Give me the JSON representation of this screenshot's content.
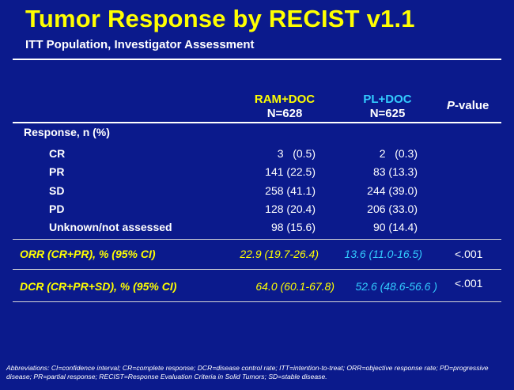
{
  "title": "Tumor Response by RECIST v1.1",
  "subtitle": "ITT Population, Investigator Assessment",
  "columns": {
    "ram": {
      "name": "RAM+DOC",
      "n": "N=628"
    },
    "pl": {
      "name": "PL+DOC",
      "n": "N=625"
    },
    "pvalue": {
      "p": "P",
      "rest": "-value"
    }
  },
  "response_header": "Response, n (%)",
  "rows": [
    {
      "label": "CR",
      "ram": "3   (0.5)",
      "pl": "2   (0.3)"
    },
    {
      "label": "PR",
      "ram": "141 (22.5)",
      "pl": "83 (13.3)"
    },
    {
      "label": "SD",
      "ram": "258 (41.1)",
      "pl": "244 (39.0)"
    },
    {
      "label": "PD",
      "ram": "128 (20.4)",
      "pl": "206 (33.0)"
    },
    {
      "label": "Unknown/not assessed",
      "ram": "98 (15.6)",
      "pl": "90 (14.4)"
    }
  ],
  "summary": [
    {
      "label": "ORR (CR+PR), % (95% CI)",
      "ram": "22.9 (19.7-26.4)",
      "pl": "13.6 (11.0-16.5)",
      "p": "<.001"
    },
    {
      "label": "DCR (CR+PR+SD), % (95% CI)",
      "ram": "64.0 (60.1-67.8)",
      "pl": "52.6 (48.6-56.6 )",
      "p": "<.001"
    }
  ],
  "footnote": "Abbreviations: CI=confidence interval; CR=complete response;  DCR=disease control rate; ITT=intention-to-treat; ORR=objective response rate; PD=progressive disease;  PR=partial response; RECIST=Response Evaluation Criteria in Solid Tumors; SD=stable disease.",
  "colors": {
    "background": "#0b1a8c",
    "title": "#ffff00",
    "ram": "#ffff00",
    "pl": "#33ccff",
    "text": "#ffffff"
  }
}
